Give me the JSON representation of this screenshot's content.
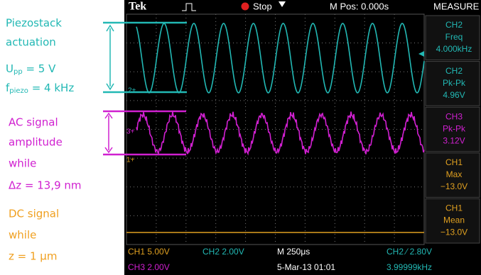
{
  "annotations": {
    "piezo": [
      "Piezostack",
      "actuation"
    ],
    "upp": {
      "symbol": "U",
      "sub": "pp",
      "rest": " = 5 V"
    },
    "fpiezo": {
      "symbol": "f",
      "sub": "piezo",
      "rest": " = 4 kHz"
    },
    "ac": [
      "AC signal",
      "amplitude",
      "while",
      "Δz = 13,9 nm"
    ],
    "dc": [
      "DC signal",
      "while",
      "z = 1 μm"
    ]
  },
  "header": {
    "brand": "Tek",
    "status": "Stop",
    "position": "M Pos: 0.000s",
    "menu": "MEASURE"
  },
  "markers": [
    "2+",
    "3+",
    "1+"
  ],
  "measure": [
    {
      "lines": [
        "CH2",
        "Freq",
        "4.000kHz"
      ]
    },
    {
      "lines": [
        "CH2",
        "Pk-Pk",
        "4.96V"
      ]
    },
    {
      "lines": [
        "CH3",
        "Pk-Pk",
        "3.12V"
      ]
    },
    {
      "lines": [
        "CH1",
        "Max",
        "−13.0V"
      ]
    },
    {
      "lines": [
        "CH1",
        "Mean",
        "−13.0V"
      ]
    }
  ],
  "footer": {
    "ch1": "CH1  5.00V",
    "ch2": "CH2  2.00V",
    "timebase": "M 250μs",
    "trigger": "CH2 ⁄ 2.80V",
    "ch3": "CH3  2.00V",
    "date": "5-Mar-13 01:01",
    "freq": "3.99999kHz"
  }
}
